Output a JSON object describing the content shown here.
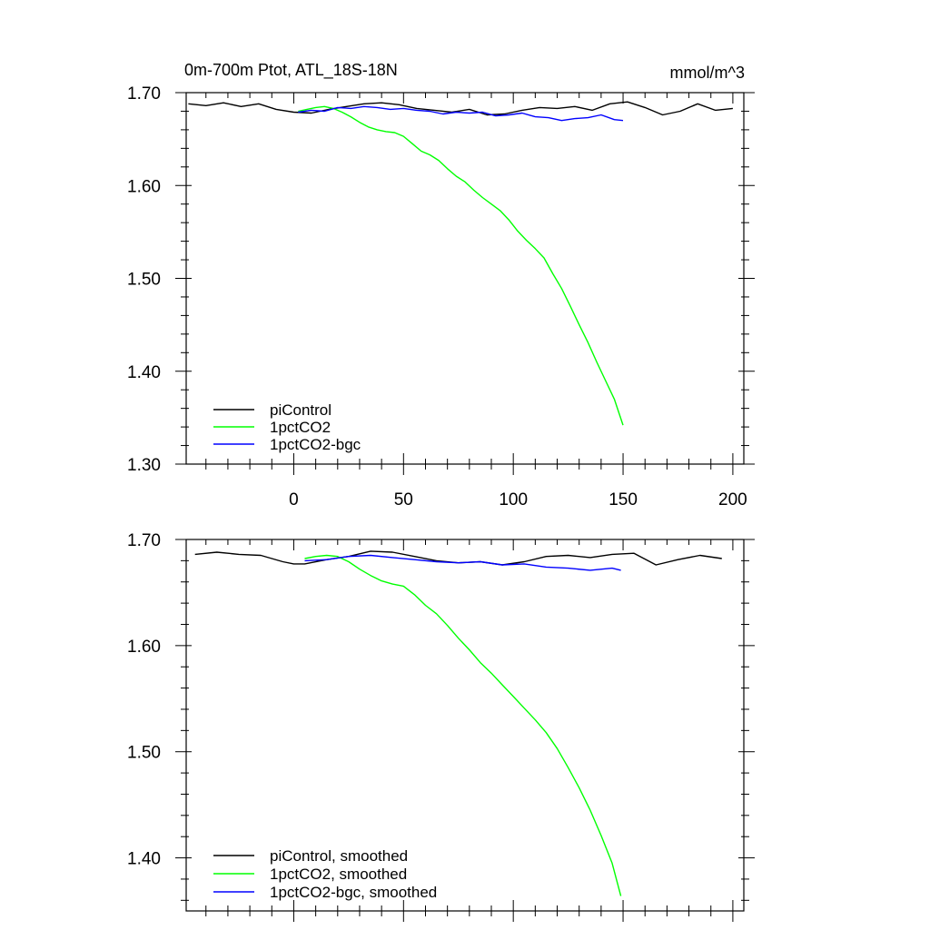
{
  "chart_data": [
    {
      "type": "line",
      "title": "0m-700m Ptot, ATL_18S-18N",
      "units": "mmol/m^3",
      "xlabel": "",
      "ylabel": "",
      "xlim": [
        -49,
        205
      ],
      "ylim": [
        1.3,
        1.7
      ],
      "xticks": [
        0,
        50,
        100,
        150,
        200
      ],
      "xtick_labels": [
        "0",
        "50",
        "100",
        "150",
        "200"
      ],
      "yticks": [
        1.3,
        1.4,
        1.5,
        1.6,
        1.7
      ],
      "ytick_labels": [
        "1.30",
        "1.40",
        "1.50",
        "1.60",
        "1.70"
      ],
      "legend_position": "bottom-left",
      "series": [
        {
          "name": "piControl",
          "color": "#000000",
          "x": [
            -48,
            -40,
            -32,
            -24,
            -16,
            -8,
            0,
            8,
            16,
            24,
            32,
            40,
            48,
            56,
            64,
            72,
            80,
            88,
            96,
            104,
            112,
            120,
            128,
            136,
            144,
            152,
            160,
            168,
            176,
            184,
            192,
            200
          ],
          "values": [
            1.688,
            1.686,
            1.689,
            1.685,
            1.688,
            1.682,
            1.679,
            1.678,
            1.682,
            1.685,
            1.688,
            1.689,
            1.687,
            1.683,
            1.681,
            1.679,
            1.682,
            1.676,
            1.677,
            1.681,
            1.684,
            1.683,
            1.685,
            1.681,
            1.688,
            1.69,
            1.684,
            1.676,
            1.68,
            1.688,
            1.681,
            1.683
          ]
        },
        {
          "name": "1pctCO2",
          "color": "#00ff00",
          "x": [
            2,
            6,
            10,
            14,
            18,
            22,
            26,
            30,
            34,
            38,
            42,
            46,
            50,
            54,
            58,
            62,
            66,
            70,
            74,
            78,
            82,
            86,
            90,
            94,
            98,
            102,
            106,
            110,
            114,
            118,
            122,
            126,
            130,
            134,
            138,
            142,
            146,
            150
          ],
          "values": [
            1.68,
            1.682,
            1.684,
            1.685,
            1.683,
            1.679,
            1.674,
            1.668,
            1.663,
            1.66,
            1.658,
            1.657,
            1.653,
            1.645,
            1.637,
            1.633,
            1.627,
            1.618,
            1.61,
            1.604,
            1.595,
            1.587,
            1.58,
            1.573,
            1.563,
            1.551,
            1.541,
            1.532,
            1.522,
            1.505,
            1.489,
            1.47,
            1.45,
            1.431,
            1.41,
            1.39,
            1.37,
            1.342
          ]
        },
        {
          "name": "1pctCO2-bgc",
          "color": "#0000ff",
          "x": [
            2,
            8,
            14,
            20,
            26,
            32,
            38,
            44,
            50,
            56,
            62,
            68,
            74,
            80,
            86,
            92,
            98,
            104,
            110,
            116,
            122,
            128,
            134,
            140,
            146,
            150
          ],
          "values": [
            1.679,
            1.681,
            1.68,
            1.684,
            1.683,
            1.685,
            1.684,
            1.682,
            1.683,
            1.681,
            1.68,
            1.677,
            1.679,
            1.678,
            1.679,
            1.675,
            1.676,
            1.678,
            1.674,
            1.673,
            1.67,
            1.672,
            1.673,
            1.676,
            1.671,
            1.67
          ]
        }
      ]
    },
    {
      "type": "line",
      "title": "",
      "xlim": [
        -49,
        205
      ],
      "ylim": [
        1.35,
        1.7
      ],
      "xticks": [
        0,
        50,
        100,
        150,
        200
      ],
      "yticks": [
        1.4,
        1.5,
        1.6,
        1.7
      ],
      "ytick_labels": [
        "1.40",
        "1.50",
        "1.60",
        "1.70"
      ],
      "legend_position": "bottom-left",
      "series": [
        {
          "name": "piControl, smoothed",
          "color": "#000000",
          "x": [
            -45,
            -35,
            -25,
            -15,
            -5,
            0,
            5,
            15,
            25,
            35,
            45,
            55,
            65,
            75,
            85,
            95,
            105,
            115,
            125,
            135,
            145,
            155,
            165,
            175,
            185,
            195
          ],
          "values": [
            1.686,
            1.688,
            1.686,
            1.685,
            1.679,
            1.677,
            1.677,
            1.681,
            1.684,
            1.689,
            1.688,
            1.684,
            1.68,
            1.678,
            1.679,
            1.676,
            1.679,
            1.684,
            1.685,
            1.683,
            1.686,
            1.687,
            1.676,
            1.681,
            1.685,
            1.682
          ]
        },
        {
          "name": "1pctCO2, smoothed",
          "color": "#00ff00",
          "x": [
            5,
            10,
            15,
            20,
            25,
            30,
            35,
            40,
            45,
            50,
            55,
            60,
            65,
            70,
            75,
            80,
            85,
            90,
            95,
            100,
            105,
            110,
            115,
            120,
            125,
            130,
            135,
            140,
            145,
            149
          ],
          "values": [
            1.682,
            1.684,
            1.685,
            1.684,
            1.679,
            1.672,
            1.666,
            1.661,
            1.658,
            1.656,
            1.648,
            1.638,
            1.63,
            1.619,
            1.607,
            1.596,
            1.584,
            1.574,
            1.563,
            1.552,
            1.541,
            1.53,
            1.518,
            1.503,
            1.485,
            1.466,
            1.445,
            1.421,
            1.395,
            1.364
          ]
        },
        {
          "name": "1pctCO2-bgc, smoothed",
          "color": "#0000ff",
          "x": [
            5,
            15,
            25,
            35,
            45,
            55,
            65,
            75,
            85,
            95,
            105,
            115,
            125,
            135,
            145,
            149
          ],
          "values": [
            1.68,
            1.681,
            1.684,
            1.685,
            1.683,
            1.681,
            1.679,
            1.678,
            1.679,
            1.676,
            1.677,
            1.674,
            1.673,
            1.671,
            1.673,
            1.671
          ]
        }
      ]
    }
  ]
}
